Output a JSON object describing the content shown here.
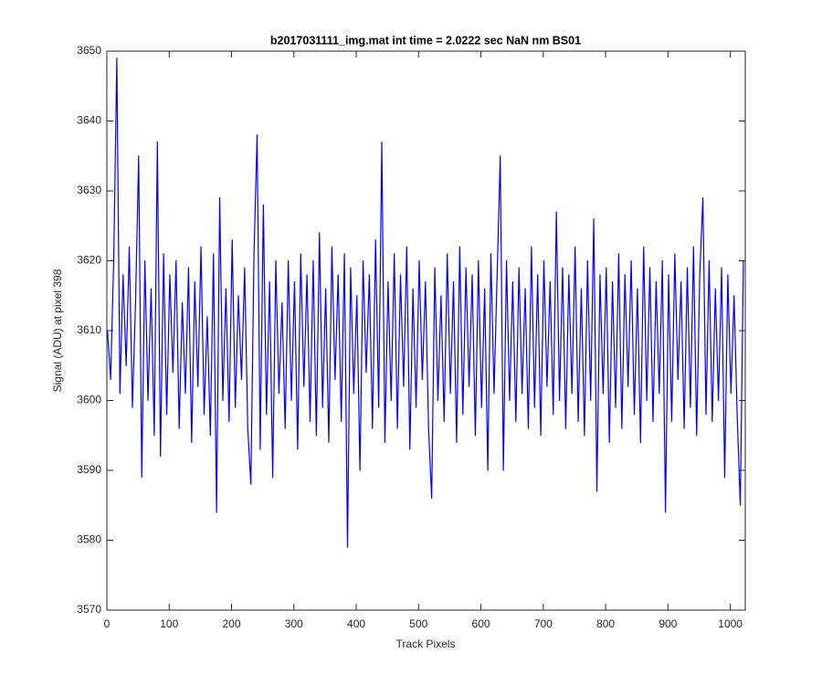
{
  "chart_data": {
    "type": "line",
    "title": "b2017031111_img.mat int time = 2.0222 sec  NaN nm BS01",
    "x_label": "Track Pixels",
    "y_label": "Signal (ADU) at pixel 398",
    "color": "#0000ff",
    "xlim": [
      0,
      1024
    ],
    "xticks": [
      0,
      100,
      200,
      300,
      400,
      500,
      600,
      700,
      800,
      900,
      1000
    ],
    "ylim": [
      3570,
      3650
    ],
    "yticks": [
      3570,
      3580,
      3590,
      3600,
      3610,
      3620,
      3630,
      3640,
      3650
    ],
    "x": [
      1,
      6,
      11,
      16,
      21,
      26,
      31,
      36,
      41,
      46,
      51,
      56,
      61,
      66,
      71,
      76,
      81,
      86,
      91,
      96,
      101,
      106,
      111,
      116,
      121,
      126,
      131,
      136,
      141,
      146,
      151,
      156,
      161,
      166,
      171,
      176,
      181,
      186,
      191,
      196,
      201,
      206,
      211,
      216,
      221,
      226,
      231,
      236,
      241,
      246,
      251,
      256,
      261,
      266,
      271,
      276,
      281,
      286,
      291,
      296,
      301,
      306,
      311,
      316,
      321,
      326,
      331,
      336,
      341,
      346,
      351,
      356,
      361,
      366,
      371,
      376,
      381,
      386,
      391,
      396,
      401,
      406,
      411,
      416,
      421,
      426,
      431,
      436,
      441,
      446,
      451,
      456,
      461,
      466,
      471,
      476,
      481,
      486,
      491,
      496,
      501,
      506,
      511,
      516,
      521,
      526,
      531,
      536,
      541,
      546,
      551,
      556,
      561,
      566,
      571,
      576,
      581,
      586,
      591,
      596,
      601,
      606,
      611,
      616,
      621,
      626,
      631,
      636,
      641,
      646,
      651,
      656,
      661,
      666,
      671,
      676,
      681,
      686,
      691,
      696,
      701,
      706,
      711,
      716,
      721,
      726,
      731,
      736,
      741,
      746,
      751,
      756,
      761,
      766,
      771,
      776,
      781,
      786,
      791,
      796,
      801,
      806,
      811,
      816,
      821,
      826,
      831,
      836,
      841,
      846,
      851,
      856,
      861,
      866,
      871,
      876,
      881,
      886,
      891,
      896,
      901,
      906,
      911,
      916,
      921,
      926,
      931,
      936,
      941,
      946,
      951,
      956,
      961,
      966,
      971,
      976,
      981,
      986,
      991,
      996,
      1001,
      1006,
      1011,
      1016,
      1021
    ],
    "values": [
      3610,
      3603,
      3620,
      3649,
      3601,
      3618,
      3605,
      3622,
      3599,
      3614,
      3635,
      3589,
      3620,
      3600,
      3616,
      3595,
      3637,
      3592,
      3621,
      3598,
      3618,
      3604,
      3620,
      3596,
      3614,
      3601,
      3619,
      3594,
      3617,
      3602,
      3622,
      3598,
      3612,
      3595,
      3621,
      3584,
      3629,
      3600,
      3616,
      3597,
      3623,
      3599,
      3615,
      3603,
      3619,
      3596,
      3588,
      3621,
      3638,
      3593,
      3628,
      3598,
      3617,
      3589,
      3620,
      3601,
      3614,
      3596,
      3620,
      3600,
      3617,
      3593,
      3621,
      3602,
      3618,
      3597,
      3620,
      3595,
      3624,
      3599,
      3616,
      3594,
      3622,
      3603,
      3618,
      3597,
      3621,
      3579,
      3619,
      3601,
      3615,
      3590,
      3620,
      3604,
      3618,
      3596,
      3623,
      3599,
      3637,
      3594,
      3617,
      3600,
      3621,
      3596,
      3618,
      3602,
      3622,
      3593,
      3616,
      3599,
      3620,
      3603,
      3617,
      3596,
      3586,
      3619,
      3600,
      3615,
      3597,
      3621,
      3601,
      3617,
      3594,
      3622,
      3598,
      3619,
      3602,
      3618,
      3595,
      3620,
      3599,
      3616,
      3590,
      3621,
      3601,
      3618,
      3635,
      3590,
      3620,
      3600,
      3617,
      3597,
      3619,
      3601,
      3616,
      3596,
      3622,
      3599,
      3618,
      3595,
      3620,
      3602,
      3617,
      3598,
      3627,
      3600,
      3619,
      3596,
      3618,
      3601,
      3622,
      3597,
      3616,
      3595,
      3620,
      3600,
      3626,
      3587,
      3618,
      3601,
      3619,
      3594,
      3617,
      3599,
      3621,
      3596,
      3618,
      3602,
      3620,
      3598,
      3616,
      3594,
      3622,
      3600,
      3619,
      3597,
      3617,
      3601,
      3620,
      3584,
      3618,
      3597,
      3621,
      3603,
      3617,
      3596,
      3619,
      3599,
      3622,
      3595,
      3618,
      3629,
      3598,
      3620,
      3597,
      3616,
      3600,
      3619,
      3589,
      3618,
      3601,
      3615,
      3598,
      3585,
      3620
    ]
  }
}
